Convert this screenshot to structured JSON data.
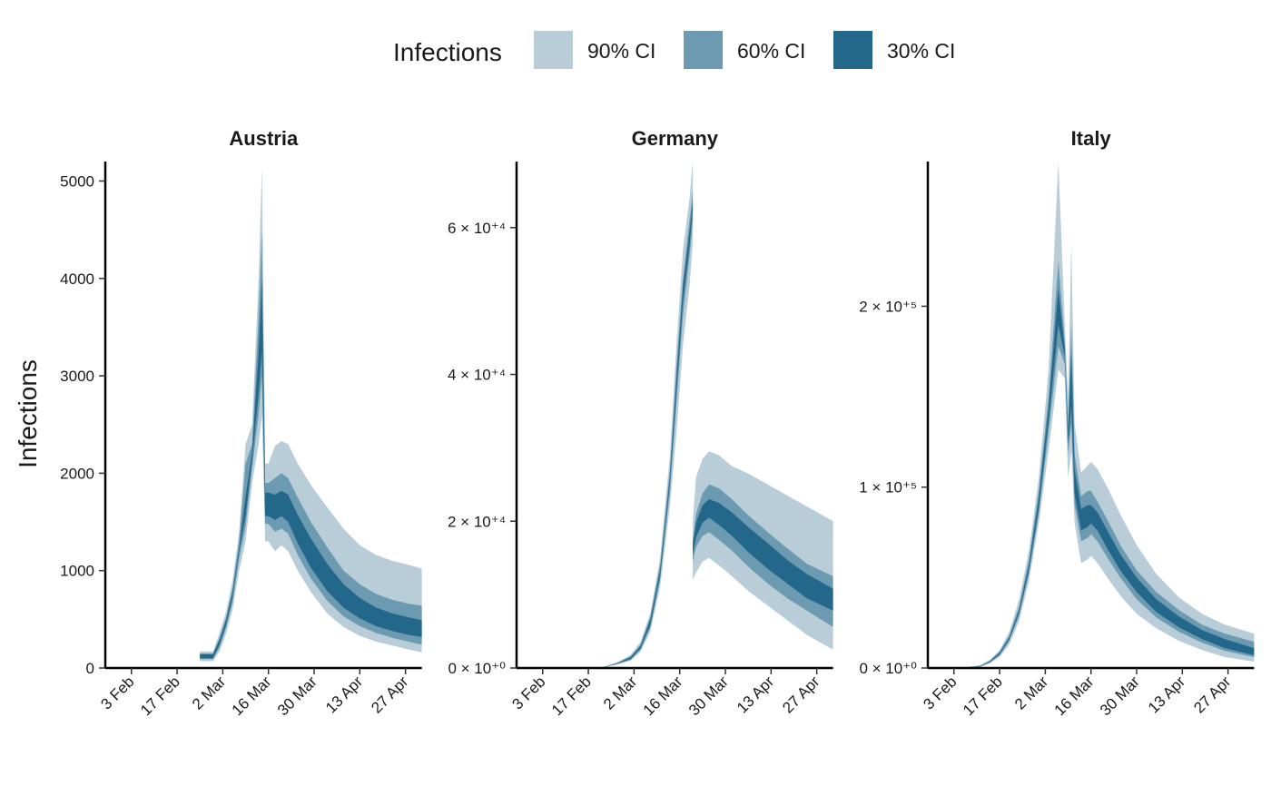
{
  "chart_data": {
    "type": "area",
    "ylabel": "Infections",
    "xlabel": "",
    "legend": {
      "title": "Infections",
      "placement": "top",
      "entries": [
        {
          "label": "90% CI",
          "color": "#b8cdd8"
        },
        {
          "label": "60% CI",
          "color": "#6c9ab0"
        },
        {
          "label": "30% CI",
          "color": "#23678a"
        }
      ]
    },
    "x_ticks": [
      "3 Feb",
      "17 Feb",
      "2 Mar",
      "16 Mar",
      "30 Mar",
      "13 Apr",
      "27 Apr"
    ],
    "x_range": [
      "2020-01-26",
      "2020-05-03"
    ],
    "panels": [
      {
        "title": "Austria",
        "ylim": [
          0,
          5200
        ],
        "y_ticks": [
          {
            "value": 0,
            "label": "0"
          },
          {
            "value": 1000,
            "label": "1000"
          },
          {
            "value": 2000,
            "label": "2000"
          },
          {
            "value": 3000,
            "label": "3000"
          },
          {
            "value": 4000,
            "label": "4000"
          },
          {
            "value": 5000,
            "label": "5000"
          }
        ],
        "x_end": "2020-05-02",
        "bands": {
          "date": [
            "2020-02-24",
            "2020-02-26",
            "2020-02-28",
            "2020-03-01",
            "2020-03-03",
            "2020-03-05",
            "2020-03-07",
            "2020-03-09",
            "2020-03-11",
            "2020-03-13",
            "2020-03-14",
            "2020-03-15",
            "2020-03-16",
            "2020-03-18",
            "2020-03-20",
            "2020-03-22",
            "2020-03-25",
            "2020-03-29",
            "2020-04-03",
            "2020-04-08",
            "2020-04-13",
            "2020-04-18",
            "2020-04-23",
            "2020-04-28",
            "2020-05-02"
          ],
          "ci90_lo": [
            70,
            70,
            70,
            170,
            350,
            600,
            1000,
            1300,
            1900,
            2300,
            2600,
            1300,
            1300,
            1200,
            1260,
            1200,
            1000,
            780,
            560,
            420,
            330,
            270,
            230,
            190,
            160
          ],
          "ci90_hi": [
            170,
            170,
            170,
            360,
            580,
            900,
            1400,
            2300,
            2500,
            4000,
            5150,
            2100,
            2100,
            2280,
            2330,
            2300,
            2100,
            1880,
            1650,
            1430,
            1260,
            1160,
            1100,
            1060,
            1020
          ],
          "ci60_lo": [
            90,
            90,
            90,
            210,
            410,
            680,
            1120,
            1450,
            2050,
            2600,
            3000,
            1480,
            1480,
            1400,
            1430,
            1380,
            1160,
            920,
            690,
            530,
            430,
            360,
            310,
            270,
            240
          ],
          "ci60_hi": [
            150,
            150,
            150,
            310,
            520,
            820,
            1300,
            2100,
            2300,
            3600,
            4500,
            1900,
            1900,
            1950,
            2000,
            1950,
            1750,
            1500,
            1240,
            1000,
            860,
            760,
            700,
            660,
            640
          ],
          "ci30_lo": [
            100,
            100,
            100,
            240,
            440,
            720,
            1200,
            1560,
            2130,
            2820,
            3260,
            1560,
            1560,
            1520,
            1560,
            1500,
            1280,
            1030,
            790,
            620,
            510,
            430,
            380,
            340,
            320
          ],
          "ci30_hi": [
            140,
            140,
            140,
            285,
            490,
            780,
            1240,
            1760,
            2220,
            3250,
            4000,
            1800,
            1800,
            1780,
            1820,
            1780,
            1570,
            1330,
            1070,
            860,
            720,
            620,
            560,
            520,
            490
          ]
        }
      },
      {
        "title": "Germany",
        "ylim": [
          0,
          69000
        ],
        "y_ticks": [
          {
            "value": 0,
            "label": "0 × 10⁺⁰"
          },
          {
            "value": 20000,
            "label": "2 × 10⁺⁴"
          },
          {
            "value": 40000,
            "label": "4 × 10⁺⁴"
          },
          {
            "value": 60000,
            "label": "6 × 10⁺⁴"
          }
        ],
        "x_end": "2020-05-02",
        "bands": {
          "date": [
            "2020-01-26",
            "2020-02-10",
            "2020-02-17",
            "2020-02-22",
            "2020-02-26",
            "2020-03-01",
            "2020-03-04",
            "2020-03-07",
            "2020-03-10",
            "2020-03-13",
            "2020-03-15",
            "2020-03-17",
            "2020-03-19",
            "2020-03-20",
            "2020-03-20",
            "2020-03-21",
            "2020-03-23",
            "2020-03-25",
            "2020-03-28",
            "2020-04-01",
            "2020-04-06",
            "2020-04-12",
            "2020-04-18",
            "2020-04-24",
            "2020-05-02"
          ],
          "ci90_lo": [
            0,
            0,
            0,
            100,
            500,
            1000,
            2200,
            5000,
            11000,
            22000,
            32000,
            44000,
            52000,
            58000,
            12000,
            13000,
            14500,
            15000,
            14000,
            12500,
            10500,
            8500,
            6500,
            4500,
            2500
          ],
          "ci90_hi": [
            0,
            0,
            0,
            200,
            800,
            1800,
            3600,
            7500,
            15000,
            29000,
            44000,
            57000,
            64000,
            69000,
            20000,
            26000,
            28500,
            29500,
            29000,
            27500,
            26500,
            25000,
            23500,
            22000,
            20000
          ],
          "ci60_lo": [
            0,
            0,
            0,
            120,
            560,
            1150,
            2500,
            5500,
            12000,
            24000,
            36000,
            48000,
            56000,
            61000,
            14500,
            16500,
            18000,
            18500,
            17500,
            16000,
            13800,
            11500,
            9500,
            7800,
            5600
          ],
          "ci60_hi": [
            0,
            0,
            0,
            170,
            720,
            1600,
            3200,
            7000,
            14000,
            27000,
            41000,
            53000,
            61000,
            65000,
            17500,
            21000,
            23800,
            25000,
            24500,
            23000,
            20800,
            18500,
            16300,
            14200,
            12500
          ],
          "ci30_lo": [
            0,
            0,
            0,
            130,
            600,
            1250,
            2700,
            5900,
            12600,
            25000,
            37500,
            50000,
            57500,
            62500,
            15500,
            17800,
            19800,
            20500,
            19500,
            18000,
            15800,
            13500,
            11500,
            9500,
            7800
          ],
          "ci30_hi": [
            0,
            0,
            0,
            160,
            680,
            1500,
            3000,
            6600,
            13400,
            26000,
            39500,
            52000,
            59500,
            63500,
            16800,
            19800,
            22200,
            23000,
            22500,
            21200,
            19200,
            17000,
            14700,
            12800,
            10800
          ]
        }
      },
      {
        "title": "Italy",
        "ylim": [
          0,
          280000
        ],
        "y_ticks": [
          {
            "value": 0,
            "label": "0 × 10⁺⁰"
          },
          {
            "value": 100000,
            "label": "1 × 10⁺⁵"
          },
          {
            "value": 200000,
            "label": "2 × 10⁺⁵"
          }
        ],
        "x_end": "2020-05-05",
        "bands": {
          "date": [
            "2020-01-26",
            "2020-02-05",
            "2020-02-11",
            "2020-02-14",
            "2020-02-17",
            "2020-02-20",
            "2020-02-23",
            "2020-02-26",
            "2020-02-29",
            "2020-03-03",
            "2020-03-06",
            "2020-03-08",
            "2020-03-09",
            "2020-03-10",
            "2020-03-11",
            "2020-03-13",
            "2020-03-15",
            "2020-03-16",
            "2020-03-18",
            "2020-03-21",
            "2020-03-25",
            "2020-03-30",
            "2020-04-05",
            "2020-04-12",
            "2020-04-19",
            "2020-04-26",
            "2020-05-05"
          ],
          "ci90_lo": [
            0,
            0,
            500,
            2500,
            6000,
            13000,
            26000,
            48000,
            80000,
            120000,
            165000,
            160000,
            105000,
            120000,
            80000,
            58000,
            60000,
            62000,
            58000,
            50000,
            40000,
            30000,
            22000,
            15000,
            10000,
            6000,
            3500
          ],
          "ci90_hi": [
            0,
            0,
            1500,
            4500,
            10000,
            20000,
            38000,
            65000,
            105000,
            165000,
            280000,
            190000,
            150000,
            235000,
            135000,
            108000,
            112000,
            114000,
            110000,
            100000,
            85000,
            68000,
            52000,
            39000,
            30000,
            24000,
            19000
          ],
          "ci60_lo": [
            0,
            0,
            800,
            3000,
            7000,
            15000,
            29000,
            52000,
            85000,
            130000,
            178000,
            168000,
            118000,
            135000,
            90000,
            70000,
            72000,
            74000,
            70000,
            61000,
            50000,
            38000,
            28000,
            20000,
            14000,
            9500,
            6000
          ],
          "ci60_hi": [
            0,
            0,
            1200,
            4000,
            9000,
            18000,
            34000,
            60000,
            98000,
            150000,
            225000,
            180000,
            135000,
            190000,
            118000,
            95000,
            98000,
            98000,
            92000,
            82000,
            68000,
            54000,
            42000,
            32000,
            24000,
            19000,
            14500
          ],
          "ci30_lo": [
            0,
            0,
            900,
            3300,
            7500,
            16000,
            30500,
            54000,
            88000,
            136000,
            190000,
            172000,
            124000,
            145000,
            96000,
            76000,
            78000,
            80000,
            76000,
            66000,
            54000,
            42000,
            31000,
            22500,
            16000,
            11000,
            7000
          ],
          "ci30_hi": [
            0,
            0,
            1100,
            3700,
            8500,
            17000,
            32500,
            57000,
            94000,
            144000,
            210000,
            176000,
            130000,
            175000,
            110000,
            88000,
            90000,
            90000,
            86000,
            76000,
            63000,
            50000,
            38000,
            28500,
            21000,
            16000,
            11000
          ]
        }
      }
    ]
  }
}
